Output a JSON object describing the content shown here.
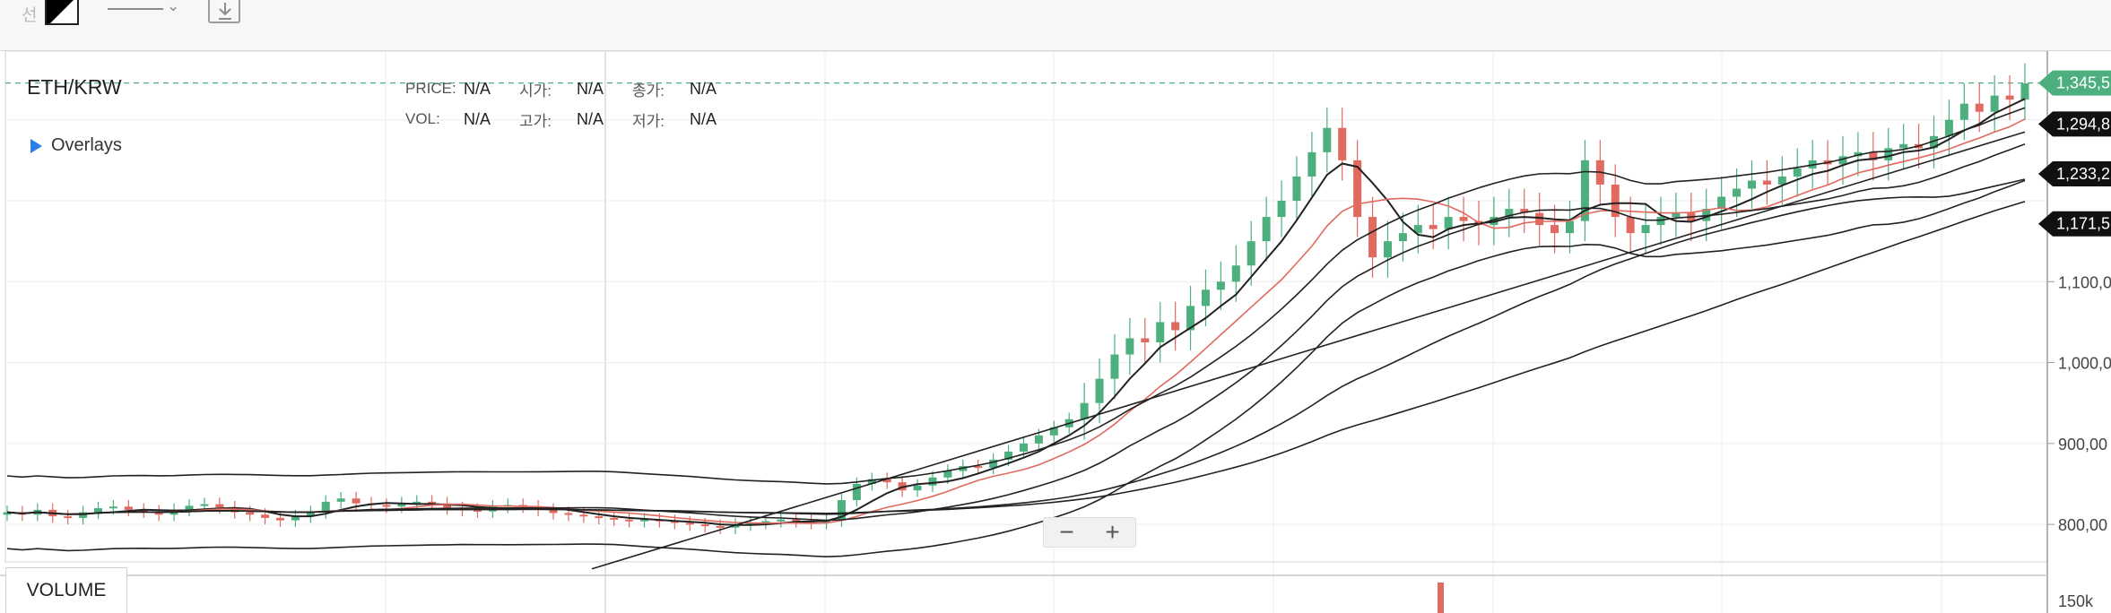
{
  "toolbar": {
    "label": "선",
    "icons": [
      "line-color-swatch-icon",
      "line-style-icon",
      "chevron-down-icon",
      "download-icon"
    ]
  },
  "chart_data": {
    "type": "candlestick",
    "pair": "ETH/KRW",
    "overlays_label": "Overlays",
    "volume_label": "VOLUME",
    "info": {
      "price_label": "PRICE:",
      "price_value": "N/A",
      "open_label": "시가:",
      "open_value": "N/A",
      "close_label": "종가:",
      "close_value": "N/A",
      "vol_label": "VOL:",
      "vol_value": "N/A",
      "high_label": "고가:",
      "high_value": "N/A",
      "low_label": "저가:",
      "low_value": "N/A"
    },
    "y_ticks": [
      "1,100,0",
      "1,000,0",
      "900,00",
      "800,00"
    ],
    "y_tick_values": [
      1100000,
      1000000,
      900000,
      800000
    ],
    "ylim": [
      737000,
      1385000
    ],
    "volume_tick": "150k",
    "price_tags": [
      {
        "label": "1,345,5",
        "value": 1345500,
        "color": "#4caf7d"
      },
      {
        "label": "1,294,8",
        "value": 1294800,
        "color": "#111111"
      },
      {
        "label": "1,233,2",
        "value": 1233200,
        "color": "#111111"
      },
      {
        "label": "1,171,5",
        "value": 1171500,
        "color": "#111111"
      }
    ],
    "last_price_line": 1345500,
    "colors": {
      "up": "#4caf7d",
      "down": "#e06a5f",
      "ma": "#222222",
      "ma_red": "#e06a5f",
      "grid": "#ececef"
    },
    "grid": true,
    "candles_approx": [
      [
        1,
        815000
      ],
      [
        2,
        812000
      ],
      [
        3,
        818000
      ],
      [
        4,
        810000
      ],
      [
        5,
        808000
      ],
      [
        6,
        815000
      ],
      [
        7,
        820000
      ],
      [
        8,
        822000
      ],
      [
        9,
        818000
      ],
      [
        10,
        816000
      ],
      [
        11,
        812000
      ],
      [
        12,
        818000
      ],
      [
        13,
        823000
      ],
      [
        14,
        825000
      ],
      [
        15,
        821000
      ],
      [
        16,
        815000
      ],
      [
        17,
        812000
      ],
      [
        18,
        808000
      ],
      [
        19,
        805000
      ],
      [
        20,
        810000
      ],
      [
        21,
        815000
      ],
      [
        22,
        828000
      ],
      [
        23,
        832000
      ],
      [
        24,
        826000
      ],
      [
        25,
        824000
      ],
      [
        26,
        822000
      ],
      [
        27,
        826000
      ],
      [
        28,
        828000
      ],
      [
        29,
        826000
      ],
      [
        30,
        820000
      ],
      [
        31,
        818000
      ],
      [
        32,
        816000
      ],
      [
        33,
        822000
      ],
      [
        34,
        824000
      ],
      [
        35,
        822000
      ],
      [
        36,
        818000
      ],
      [
        37,
        814000
      ],
      [
        38,
        812000
      ],
      [
        39,
        810000
      ],
      [
        40,
        808000
      ],
      [
        41,
        806000
      ],
      [
        42,
        804000
      ],
      [
        43,
        806000
      ],
      [
        44,
        804000
      ],
      [
        45,
        802000
      ],
      [
        46,
        800000
      ],
      [
        47,
        798000
      ],
      [
        48,
        796000
      ],
      [
        49,
        800000
      ],
      [
        50,
        802000
      ],
      [
        51,
        804000
      ],
      [
        52,
        806000
      ],
      [
        53,
        804000
      ],
      [
        54,
        802000
      ],
      [
        55,
        805000
      ],
      [
        56,
        830000
      ],
      [
        57,
        850000
      ],
      [
        58,
        856000
      ],
      [
        59,
        852000
      ],
      [
        60,
        842000
      ],
      [
        61,
        848000
      ],
      [
        62,
        858000
      ],
      [
        63,
        866000
      ],
      [
        64,
        872000
      ],
      [
        65,
        870000
      ],
      [
        66,
        880000
      ],
      [
        67,
        890000
      ],
      [
        68,
        900000
      ],
      [
        69,
        910000
      ],
      [
        70,
        920000
      ],
      [
        71,
        930000
      ],
      [
        72,
        950000
      ],
      [
        73,
        980000
      ],
      [
        74,
        1010000
      ],
      [
        75,
        1030000
      ],
      [
        76,
        1025000
      ],
      [
        77,
        1050000
      ],
      [
        78,
        1040000
      ],
      [
        79,
        1070000
      ],
      [
        80,
        1090000
      ],
      [
        81,
        1100000
      ],
      [
        82,
        1120000
      ],
      [
        83,
        1150000
      ],
      [
        84,
        1180000
      ],
      [
        85,
        1200000
      ],
      [
        86,
        1230000
      ],
      [
        87,
        1260000
      ],
      [
        88,
        1290000
      ],
      [
        89,
        1250000
      ],
      [
        90,
        1180000
      ],
      [
        91,
        1130000
      ],
      [
        92,
        1150000
      ],
      [
        93,
        1160000
      ],
      [
        94,
        1170000
      ],
      [
        95,
        1165000
      ],
      [
        96,
        1180000
      ],
      [
        97,
        1175000
      ],
      [
        98,
        1170000
      ],
      [
        99,
        1180000
      ],
      [
        100,
        1190000
      ],
      [
        101,
        1185000
      ],
      [
        102,
        1170000
      ],
      [
        103,
        1160000
      ],
      [
        104,
        1175000
      ],
      [
        105,
        1250000
      ],
      [
        106,
        1220000
      ],
      [
        107,
        1180000
      ],
      [
        108,
        1160000
      ],
      [
        109,
        1170000
      ],
      [
        110,
        1180000
      ],
      [
        111,
        1185000
      ],
      [
        112,
        1175000
      ],
      [
        113,
        1190000
      ],
      [
        114,
        1205000
      ],
      [
        115,
        1215000
      ],
      [
        116,
        1225000
      ],
      [
        117,
        1220000
      ],
      [
        118,
        1230000
      ],
      [
        119,
        1240000
      ],
      [
        120,
        1250000
      ],
      [
        121,
        1245000
      ],
      [
        122,
        1255000
      ],
      [
        123,
        1260000
      ],
      [
        124,
        1250000
      ],
      [
        125,
        1265000
      ],
      [
        126,
        1270000
      ],
      [
        127,
        1265000
      ],
      [
        128,
        1280000
      ],
      [
        129,
        1300000
      ],
      [
        130,
        1320000
      ],
      [
        131,
        1310000
      ],
      [
        132,
        1330000
      ],
      [
        133,
        1325000
      ],
      [
        134,
        1345000
      ]
    ]
  }
}
